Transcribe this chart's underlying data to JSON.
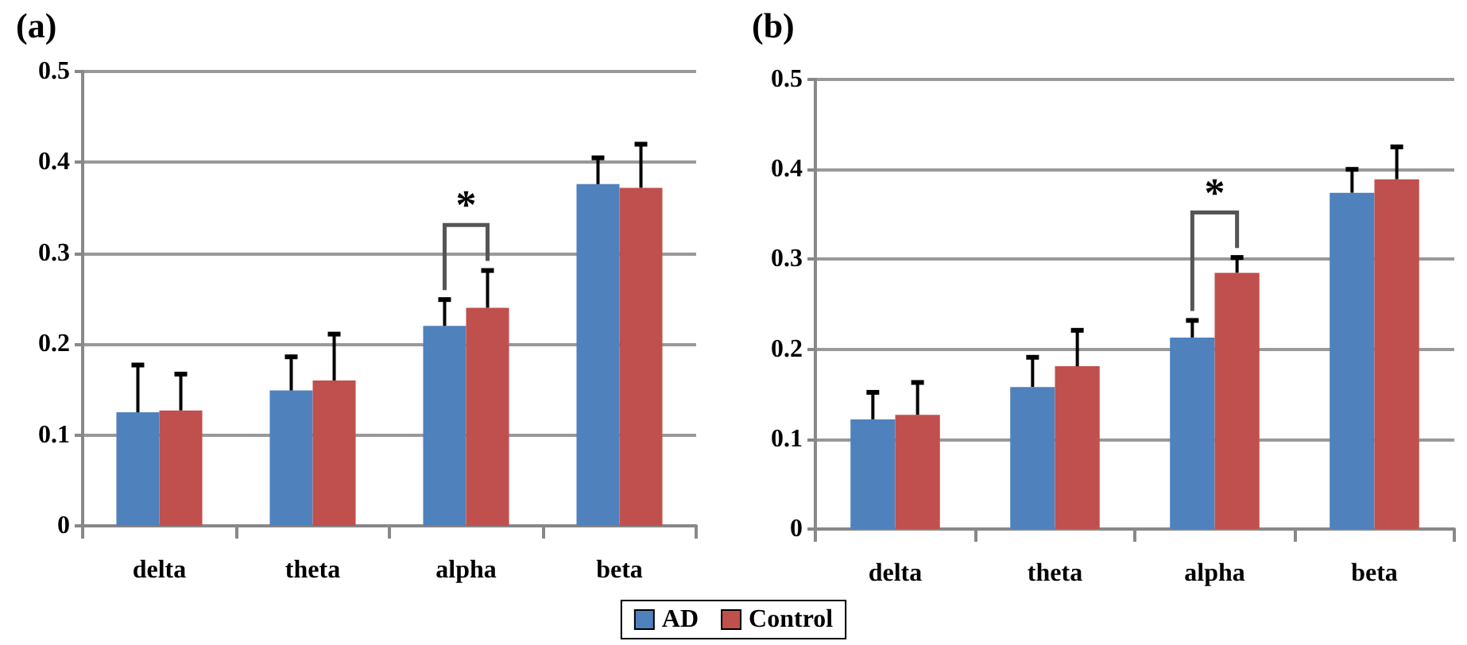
{
  "chart_data": [
    {
      "type": "bar",
      "title": "(a)",
      "categories": [
        "delta",
        "theta",
        "alpha",
        "beta"
      ],
      "ylim": [
        0,
        0.5
      ],
      "yticks": [
        0,
        0.1,
        0.2,
        0.3,
        0.4,
        0.5
      ],
      "grid": "y",
      "annotations": [
        "*"
      ],
      "series": [
        {
          "color": "#4f81bd",
          "values": [
            0.125,
            0.149,
            0.22,
            0.376
          ],
          "errors": [
            [
              0.125,
              0.177
            ],
            [
              0.149,
              0.186
            ],
            [
              0.22,
              0.249
            ],
            [
              0.376,
              0.405
            ]
          ]
        },
        {
          "color": "#c0504d",
          "values": [
            0.127,
            0.16,
            0.24,
            0.372
          ],
          "errors": [
            [
              0.127,
              0.167
            ],
            [
              0.16,
              0.211
            ],
            [
              0.24,
              0.281
            ],
            [
              0.372,
              0.42
            ]
          ]
        }
      ]
    },
    {
      "type": "bar",
      "title": "(b)",
      "categories": [
        "delta",
        "theta",
        "alpha",
        "beta"
      ],
      "ylim": [
        0,
        0.5
      ],
      "yticks": [
        0,
        0.1,
        0.2,
        0.3,
        0.4,
        0.5
      ],
      "grid": "y",
      "legend": "bottom",
      "annotations": [
        "*"
      ],
      "series": [
        {
          "name": "AD",
          "color": "#4f81bd",
          "values": [
            0.122,
            0.158,
            0.213,
            0.374
          ],
          "errors": [
            [
              0.122,
              0.152
            ],
            [
              0.158,
              0.191
            ],
            [
              0.213,
              0.232
            ],
            [
              0.374,
              0.4
            ]
          ]
        },
        {
          "name": "Control",
          "color": "#c0504d",
          "values": [
            0.127,
            0.181,
            0.285,
            0.389
          ],
          "errors": [
            [
              0.127,
              0.163
            ],
            [
              0.181,
              0.221
            ],
            [
              0.285,
              0.302
            ],
            [
              0.389,
              0.425
            ]
          ]
        }
      ]
    }
  ]
}
